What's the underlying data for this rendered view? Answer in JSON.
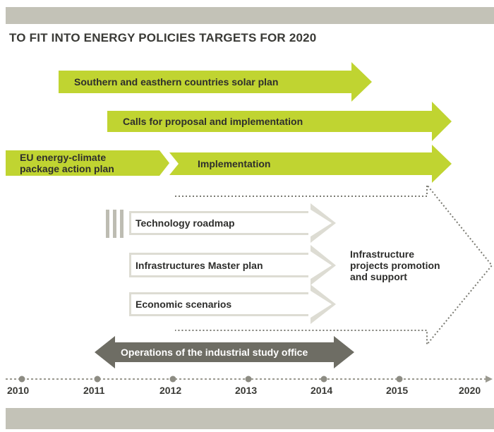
{
  "title": "TO FIT INTO ENERGY POLICIES TARGETS FOR 2020",
  "colors": {
    "green": "#c0d431",
    "gray_dark": "#6e6d64",
    "band": "#c3c2b7",
    "outline": "#b8b7ad"
  },
  "green_arrows": [
    {
      "label": "Southern and easthern countries solar plan"
    },
    {
      "label": "Calls for proposal and implementation"
    },
    {
      "label_line1": "EU energy-climate",
      "label_line2": "package action plan"
    },
    {
      "label": "Implementation"
    }
  ],
  "outline_arrows": [
    {
      "label": "Technology roadmap"
    },
    {
      "label": "Infrastructures Master plan"
    },
    {
      "label": "Economic scenarios"
    }
  ],
  "infrastructure": {
    "line1": "Infrastructure",
    "line2": "projects promotion",
    "line3": "and support"
  },
  "operations": {
    "label": "Operations of the industrial study office"
  },
  "timeline": {
    "years": [
      "2010",
      "2011",
      "2012",
      "2013",
      "2014",
      "2015",
      "2020"
    ]
  }
}
